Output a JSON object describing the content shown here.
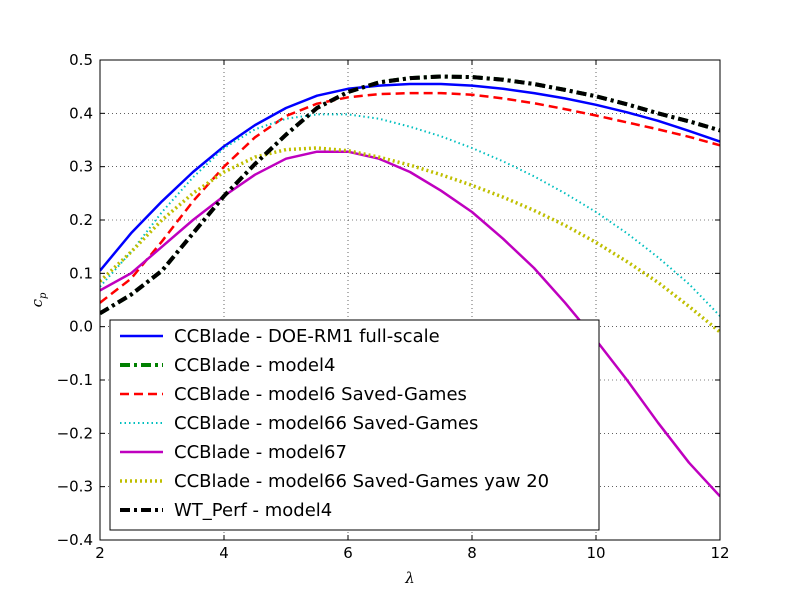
{
  "chart_data": {
    "type": "line",
    "xlabel": "λ",
    "ylabel": "c",
    "ylabel_sub": "p",
    "xlim": [
      2,
      12
    ],
    "ylim": [
      -0.4,
      0.5
    ],
    "xticks": [
      2,
      4,
      6,
      8,
      10,
      12
    ],
    "xtick_labels": [
      "2",
      "4",
      "6",
      "8",
      "10",
      "12"
    ],
    "yticks": [
      -0.4,
      -0.3,
      -0.2,
      -0.1,
      0.0,
      0.1,
      0.2,
      0.3,
      0.4,
      0.5
    ],
    "ytick_labels": [
      "−0.4",
      "−0.3",
      "−0.2",
      "−0.1",
      "0.0",
      "0.1",
      "0.2",
      "0.3",
      "0.4",
      "0.5"
    ],
    "grid": true,
    "legend_position": "lower-left",
    "series": [
      {
        "name": "CCBlade - DOE-RM1 full-scale",
        "color": "#0000ff",
        "style": "solid",
        "width": 2.5,
        "x": [
          2,
          2.5,
          3,
          3.5,
          4,
          4.5,
          5,
          5.5,
          6,
          6.5,
          7,
          7.5,
          8,
          8.5,
          9,
          9.5,
          10,
          10.5,
          11,
          11.5,
          12
        ],
        "y": [
          0.105,
          0.175,
          0.235,
          0.29,
          0.338,
          0.378,
          0.41,
          0.433,
          0.446,
          0.452,
          0.455,
          0.455,
          0.452,
          0.446,
          0.438,
          0.428,
          0.416,
          0.402,
          0.386,
          0.367,
          0.347
        ]
      },
      {
        "name": "CCBlade - model4",
        "color": "#008000",
        "style": "dashdot",
        "width": 4,
        "x": [
          2,
          2.5,
          3,
          3.5,
          4,
          4.5,
          5,
          5.5,
          6,
          6.5,
          7,
          7.5,
          8,
          8.5,
          9,
          9.5,
          10,
          10.5,
          11,
          11.5,
          12
        ],
        "y": [
          0.025,
          0.06,
          0.105,
          0.175,
          0.245,
          0.305,
          0.36,
          0.41,
          0.44,
          0.458,
          0.466,
          0.469,
          0.468,
          0.463,
          0.455,
          0.444,
          0.432,
          0.417,
          0.4,
          0.385,
          0.368
        ]
      },
      {
        "name": "CCBlade - model6 Saved-Games",
        "color": "#ff0000",
        "style": "dashed",
        "width": 2.5,
        "x": [
          2,
          2.5,
          3,
          3.5,
          4,
          4.5,
          5,
          5.5,
          6,
          6.5,
          7,
          7.5,
          8,
          8.5,
          9,
          9.5,
          10,
          10.5,
          11,
          11.5,
          12
        ],
        "y": [
          0.045,
          0.09,
          0.16,
          0.235,
          0.3,
          0.355,
          0.395,
          0.418,
          0.43,
          0.436,
          0.438,
          0.438,
          0.435,
          0.428,
          0.419,
          0.408,
          0.396,
          0.383,
          0.37,
          0.356,
          0.34
        ]
      },
      {
        "name": "CCBlade - model66 Saved-Games",
        "color": "#00bfbf",
        "style": "dotted",
        "width": 2,
        "x": [
          2,
          2.5,
          3,
          3.5,
          4,
          4.5,
          5,
          5.5,
          6,
          6.5,
          7,
          7.5,
          8,
          8.5,
          9,
          9.5,
          10,
          10.5,
          11,
          11.5,
          12
        ],
        "y": [
          0.075,
          0.14,
          0.215,
          0.28,
          0.335,
          0.37,
          0.39,
          0.398,
          0.398,
          0.39,
          0.375,
          0.357,
          0.335,
          0.31,
          0.282,
          0.25,
          0.215,
          0.175,
          0.13,
          0.08,
          0.02
        ]
      },
      {
        "name": "CCBlade - model67",
        "color": "#bf00bf",
        "style": "solid",
        "width": 2.5,
        "x": [
          2,
          2.5,
          3,
          3.5,
          4,
          4.5,
          5,
          5.5,
          6,
          6.5,
          7,
          7.5,
          8,
          8.5,
          9,
          9.5,
          10,
          10.5,
          11,
          11.5,
          12
        ],
        "y": [
          0.068,
          0.1,
          0.15,
          0.2,
          0.245,
          0.285,
          0.315,
          0.328,
          0.328,
          0.315,
          0.29,
          0.255,
          0.215,
          0.165,
          0.11,
          0.045,
          -0.025,
          -0.1,
          -0.18,
          -0.255,
          -0.318
        ]
      },
      {
        "name": "CCBlade - model66 Saved-Games yaw 20",
        "color": "#bfbf00",
        "style": "dotted",
        "width": 3.5,
        "x": [
          2,
          2.5,
          3,
          3.5,
          4,
          4.5,
          5,
          5.5,
          6,
          6.5,
          7,
          7.5,
          8,
          8.5,
          9,
          9.5,
          10,
          10.5,
          11,
          11.5,
          12
        ],
        "y": [
          0.085,
          0.14,
          0.2,
          0.25,
          0.29,
          0.318,
          0.332,
          0.335,
          0.33,
          0.318,
          0.303,
          0.285,
          0.265,
          0.243,
          0.218,
          0.19,
          0.158,
          0.122,
          0.083,
          0.038,
          -0.01
        ]
      },
      {
        "name": "WT_Perf - model4",
        "color": "#000000",
        "style": "dashdot",
        "width": 4,
        "x": [
          2,
          2.5,
          3,
          3.5,
          4,
          4.5,
          5,
          5.5,
          6,
          6.5,
          7,
          7.5,
          8,
          8.5,
          9,
          9.5,
          10,
          10.5,
          11,
          11.5,
          12
        ],
        "y": [
          0.025,
          0.06,
          0.105,
          0.175,
          0.245,
          0.305,
          0.36,
          0.41,
          0.44,
          0.458,
          0.466,
          0.469,
          0.468,
          0.463,
          0.455,
          0.444,
          0.432,
          0.417,
          0.4,
          0.385,
          0.368
        ]
      }
    ]
  }
}
